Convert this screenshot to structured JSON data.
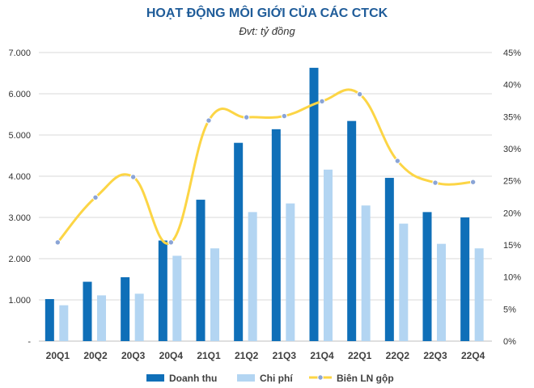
{
  "chart_data": {
    "type": "bar",
    "title": "HOẠT ĐỘNG MÔI GIỚI CỦA CÁC CTCK",
    "subtitle": "Đvt: tỷ đồng",
    "categories": [
      "20Q1",
      "20Q2",
      "20Q3",
      "20Q4",
      "21Q1",
      "21Q2",
      "21Q3",
      "21Q4",
      "22Q1",
      "22Q2",
      "22Q3",
      "22Q4"
    ],
    "series": [
      {
        "name": "Doanh thu",
        "type": "bar",
        "axis": "left",
        "color": "#0f6fb8",
        "values": [
          1020,
          1440,
          1550,
          2440,
          3430,
          4810,
          5140,
          6630,
          5340,
          3960,
          3130,
          3000
        ]
      },
      {
        "name": "Chi phí",
        "type": "bar",
        "axis": "left",
        "color": "#b3d5f2",
        "values": [
          870,
          1110,
          1150,
          2070,
          2250,
          3130,
          3340,
          4160,
          3290,
          2850,
          2360,
          2250
        ]
      },
      {
        "name": "Biên LN gộp",
        "type": "line",
        "axis": "right",
        "color": "#fcd545",
        "values": [
          15.4,
          22.4,
          25.6,
          15.4,
          34.4,
          34.9,
          35.1,
          37.4,
          38.5,
          28.1,
          24.7,
          24.8
        ]
      }
    ],
    "y_left": {
      "ylim": [
        0,
        7000
      ],
      "ticks": [
        0,
        1000,
        2000,
        3000,
        4000,
        5000,
        6000,
        7000
      ],
      "tick_labels": [
        "-",
        "1.000",
        "2.000",
        "3.000",
        "4.000",
        "5.000",
        "6.000",
        "7.000"
      ]
    },
    "y_right": {
      "ylim": [
        0,
        45
      ],
      "ticks": [
        0,
        5,
        10,
        15,
        20,
        25,
        30,
        35,
        40,
        45
      ],
      "tick_labels": [
        "0%",
        "5%",
        "10%",
        "15%",
        "20%",
        "25%",
        "30%",
        "35%",
        "40%",
        "45%"
      ]
    },
    "grid": true,
    "legend_position": "bottom"
  }
}
